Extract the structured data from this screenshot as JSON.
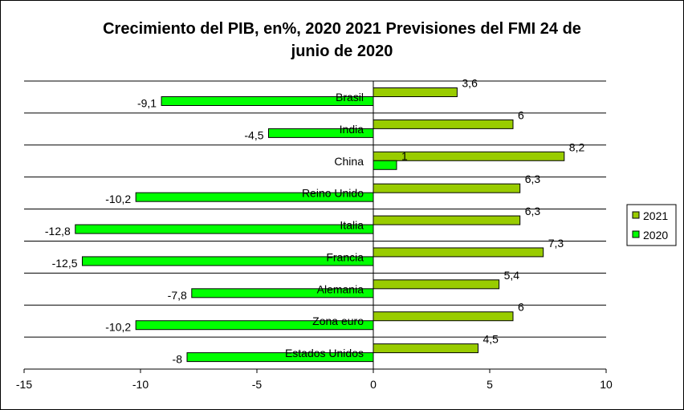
{
  "chart_data": {
    "type": "bar",
    "orientation": "horizontal",
    "title": "Crecimiento del PIB, en%, 2020 2021 Previsiones del FMI 24 de junio de 2020",
    "title_lines": [
      "Crecimiento del PIB, en%, 2020 2021 Previsiones del FMI 24 de",
      "junio de 2020"
    ],
    "categories": [
      "Brasil",
      "India",
      "China",
      "Reino Unido",
      "Italia",
      "Francia",
      "Alemania",
      "Zona euro",
      "Estados Unidos"
    ],
    "series": [
      {
        "name": "2021",
        "color": "#99cc00",
        "values": [
          3.6,
          6,
          8.2,
          6.3,
          6.3,
          7.3,
          5.4,
          6,
          4.5
        ],
        "labels": [
          "3,6",
          "6",
          "8,2",
          "6,3",
          "6,3",
          "7,3",
          "5,4",
          "6",
          "4,5"
        ]
      },
      {
        "name": "2020",
        "color": "#00ff00",
        "values": [
          -9.1,
          -4.5,
          1,
          -10.2,
          -12.8,
          -12.5,
          -7.8,
          -10.2,
          -8
        ],
        "labels": [
          "-9,1",
          "-4,5",
          "1",
          "-10,2",
          "-12,8",
          "-12,5",
          "-7,8",
          "-10,2",
          "-8"
        ]
      }
    ],
    "xlim": [
      -15,
      10
    ],
    "x_ticks": [
      -15,
      -10,
      -5,
      0,
      5,
      10
    ],
    "x_tick_labels": [
      "-15",
      "-10",
      "-5",
      "0",
      "5",
      "10"
    ],
    "grid": "horizontal",
    "legend_position": "right",
    "xlabel": "",
    "ylabel": ""
  }
}
